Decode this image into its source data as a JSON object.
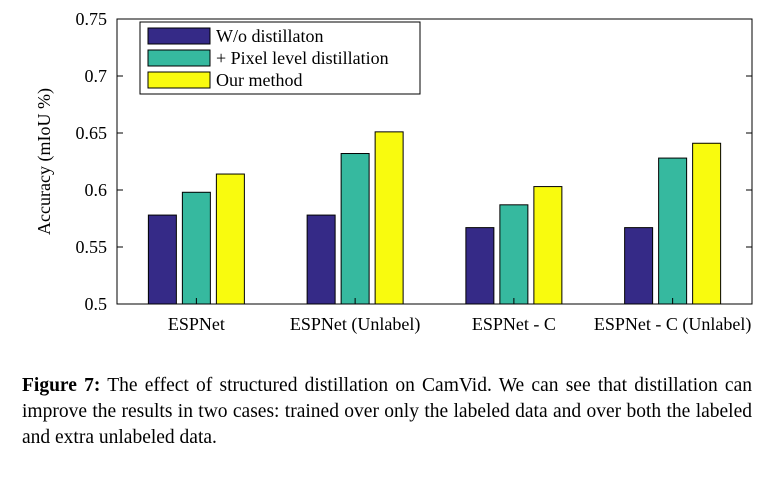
{
  "chart_data": {
    "type": "bar",
    "categories": [
      "ESPNet",
      "ESPNet (Unlabel)",
      "ESPNet - C",
      "ESPNet - C (Unlabel)"
    ],
    "series": [
      {
        "name": "W/o distillaton",
        "color": "#352a87",
        "values": [
          0.578,
          0.578,
          0.567,
          0.567
        ]
      },
      {
        "name": "+ Pixel level distillation",
        "color": "#36b99f",
        "values": [
          0.598,
          0.632,
          0.587,
          0.628
        ]
      },
      {
        "name": "Our method",
        "color": "#f9fb0e",
        "values": [
          0.614,
          0.651,
          0.603,
          0.641
        ]
      }
    ],
    "ylabel": "Accuracy (mIoU %)",
    "ylim": [
      0.5,
      0.75
    ],
    "yticks": [
      "0.5",
      "0.55",
      "0.6",
      "0.65",
      "0.7",
      "0.75"
    ],
    "grid": false,
    "legend_position": "top-left"
  },
  "caption": {
    "label": "Figure 7:",
    "text": "The effect of structured distillation on CamVid. We can see that distillation can improve the results in two cases: trained over only the labeled data and over both the labeled and extra unlabeled data."
  }
}
